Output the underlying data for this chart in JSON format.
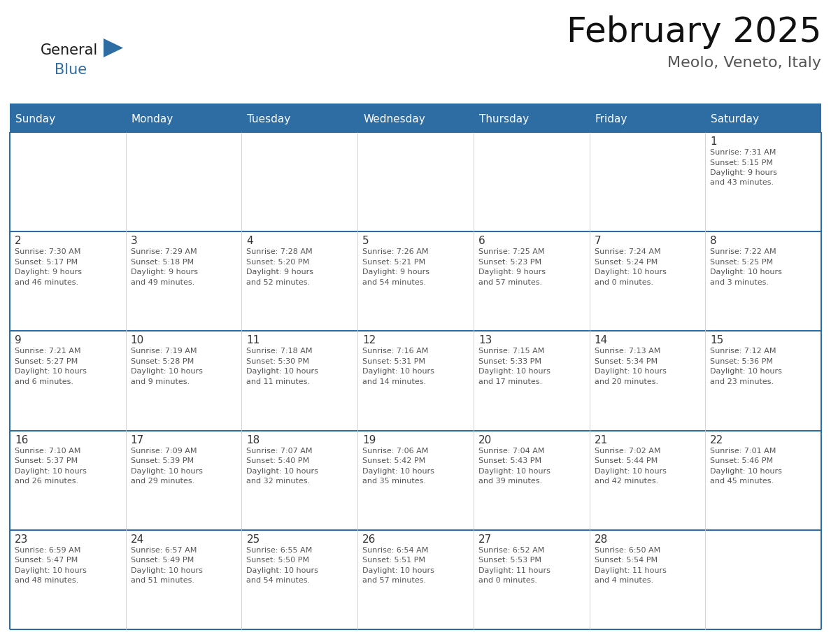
{
  "title": "February 2025",
  "subtitle": "Meolo, Veneto, Italy",
  "header_bg": "#2E6DA4",
  "header_text_color": "#FFFFFF",
  "day_names": [
    "Sunday",
    "Monday",
    "Tuesday",
    "Wednesday",
    "Thursday",
    "Friday",
    "Saturday"
  ],
  "cell_bg": "#FFFFFF",
  "cell_bg_alt": "#F2F2F2",
  "border_color": "#2E6DA4",
  "text_color": "#555555",
  "number_color": "#333333",
  "logo_general_color": "#1a1a1a",
  "logo_blue_color": "#2E6DA4",
  "days": [
    {
      "day": 1,
      "col": 6,
      "row": 0,
      "sunrise": "7:31 AM",
      "sunset": "5:15 PM",
      "daylight": "9 hours and 43 minutes."
    },
    {
      "day": 2,
      "col": 0,
      "row": 1,
      "sunrise": "7:30 AM",
      "sunset": "5:17 PM",
      "daylight": "9 hours and 46 minutes."
    },
    {
      "day": 3,
      "col": 1,
      "row": 1,
      "sunrise": "7:29 AM",
      "sunset": "5:18 PM",
      "daylight": "9 hours and 49 minutes."
    },
    {
      "day": 4,
      "col": 2,
      "row": 1,
      "sunrise": "7:28 AM",
      "sunset": "5:20 PM",
      "daylight": "9 hours and 52 minutes."
    },
    {
      "day": 5,
      "col": 3,
      "row": 1,
      "sunrise": "7:26 AM",
      "sunset": "5:21 PM",
      "daylight": "9 hours and 54 minutes."
    },
    {
      "day": 6,
      "col": 4,
      "row": 1,
      "sunrise": "7:25 AM",
      "sunset": "5:23 PM",
      "daylight": "9 hours and 57 minutes."
    },
    {
      "day": 7,
      "col": 5,
      "row": 1,
      "sunrise": "7:24 AM",
      "sunset": "5:24 PM",
      "daylight": "10 hours and 0 minutes."
    },
    {
      "day": 8,
      "col": 6,
      "row": 1,
      "sunrise": "7:22 AM",
      "sunset": "5:25 PM",
      "daylight": "10 hours and 3 minutes."
    },
    {
      "day": 9,
      "col": 0,
      "row": 2,
      "sunrise": "7:21 AM",
      "sunset": "5:27 PM",
      "daylight": "10 hours and 6 minutes."
    },
    {
      "day": 10,
      "col": 1,
      "row": 2,
      "sunrise": "7:19 AM",
      "sunset": "5:28 PM",
      "daylight": "10 hours and 9 minutes."
    },
    {
      "day": 11,
      "col": 2,
      "row": 2,
      "sunrise": "7:18 AM",
      "sunset": "5:30 PM",
      "daylight": "10 hours and 11 minutes."
    },
    {
      "day": 12,
      "col": 3,
      "row": 2,
      "sunrise": "7:16 AM",
      "sunset": "5:31 PM",
      "daylight": "10 hours and 14 minutes."
    },
    {
      "day": 13,
      "col": 4,
      "row": 2,
      "sunrise": "7:15 AM",
      "sunset": "5:33 PM",
      "daylight": "10 hours and 17 minutes."
    },
    {
      "day": 14,
      "col": 5,
      "row": 2,
      "sunrise": "7:13 AM",
      "sunset": "5:34 PM",
      "daylight": "10 hours and 20 minutes."
    },
    {
      "day": 15,
      "col": 6,
      "row": 2,
      "sunrise": "7:12 AM",
      "sunset": "5:36 PM",
      "daylight": "10 hours and 23 minutes."
    },
    {
      "day": 16,
      "col": 0,
      "row": 3,
      "sunrise": "7:10 AM",
      "sunset": "5:37 PM",
      "daylight": "10 hours and 26 minutes."
    },
    {
      "day": 17,
      "col": 1,
      "row": 3,
      "sunrise": "7:09 AM",
      "sunset": "5:39 PM",
      "daylight": "10 hours and 29 minutes."
    },
    {
      "day": 18,
      "col": 2,
      "row": 3,
      "sunrise": "7:07 AM",
      "sunset": "5:40 PM",
      "daylight": "10 hours and 32 minutes."
    },
    {
      "day": 19,
      "col": 3,
      "row": 3,
      "sunrise": "7:06 AM",
      "sunset": "5:42 PM",
      "daylight": "10 hours and 35 minutes."
    },
    {
      "day": 20,
      "col": 4,
      "row": 3,
      "sunrise": "7:04 AM",
      "sunset": "5:43 PM",
      "daylight": "10 hours and 39 minutes."
    },
    {
      "day": 21,
      "col": 5,
      "row": 3,
      "sunrise": "7:02 AM",
      "sunset": "5:44 PM",
      "daylight": "10 hours and 42 minutes."
    },
    {
      "day": 22,
      "col": 6,
      "row": 3,
      "sunrise": "7:01 AM",
      "sunset": "5:46 PM",
      "daylight": "10 hours and 45 minutes."
    },
    {
      "day": 23,
      "col": 0,
      "row": 4,
      "sunrise": "6:59 AM",
      "sunset": "5:47 PM",
      "daylight": "10 hours and 48 minutes."
    },
    {
      "day": 24,
      "col": 1,
      "row": 4,
      "sunrise": "6:57 AM",
      "sunset": "5:49 PM",
      "daylight": "10 hours and 51 minutes."
    },
    {
      "day": 25,
      "col": 2,
      "row": 4,
      "sunrise": "6:55 AM",
      "sunset": "5:50 PM",
      "daylight": "10 hours and 54 minutes."
    },
    {
      "day": 26,
      "col": 3,
      "row": 4,
      "sunrise": "6:54 AM",
      "sunset": "5:51 PM",
      "daylight": "10 hours and 57 minutes."
    },
    {
      "day": 27,
      "col": 4,
      "row": 4,
      "sunrise": "6:52 AM",
      "sunset": "5:53 PM",
      "daylight": "11 hours and 0 minutes."
    },
    {
      "day": 28,
      "col": 5,
      "row": 4,
      "sunrise": "6:50 AM",
      "sunset": "5:54 PM",
      "daylight": "11 hours and 4 minutes."
    }
  ]
}
